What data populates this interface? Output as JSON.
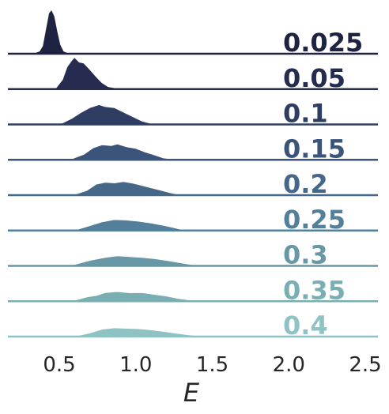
{
  "chart_data": {
    "type": "area",
    "style": "ridgeline density plot",
    "xlabel": "E",
    "x_ticks": [
      "0.5",
      "1.0",
      "1.5",
      "2.0",
      "2.5"
    ],
    "xlim": [
      0.15,
      2.6
    ],
    "grid": false,
    "legend": "none",
    "series": [
      {
        "name": "0.025",
        "color": "#1d2340",
        "peak": 1.0,
        "points": [
          [
            0.28,
            0
          ],
          [
            0.33,
            0.01
          ],
          [
            0.37,
            0.06
          ],
          [
            0.39,
            0.18
          ],
          [
            0.41,
            0.55
          ],
          [
            0.43,
            0.92
          ],
          [
            0.45,
            1.0
          ],
          [
            0.47,
            0.85
          ],
          [
            0.49,
            0.5
          ],
          [
            0.51,
            0.2
          ],
          [
            0.53,
            0.06
          ],
          [
            0.56,
            0.02
          ],
          [
            0.65,
            0
          ]
        ]
      },
      {
        "name": "0.05",
        "color": "#252c4f",
        "peak": 0.72,
        "points": [
          [
            0.44,
            0
          ],
          [
            0.48,
            0.05
          ],
          [
            0.52,
            0.3
          ],
          [
            0.55,
            0.7
          ],
          [
            0.58,
            0.9
          ],
          [
            0.6,
            1.0
          ],
          [
            0.63,
            0.85
          ],
          [
            0.66,
            0.82
          ],
          [
            0.7,
            0.62
          ],
          [
            0.74,
            0.4
          ],
          [
            0.78,
            0.2
          ],
          [
            0.82,
            0.08
          ],
          [
            0.88,
            0.03
          ],
          [
            0.95,
            0
          ]
        ]
      },
      {
        "name": "0.1",
        "color": "#2f3d62",
        "peak": 0.45,
        "points": [
          [
            0.46,
            0
          ],
          [
            0.52,
            0.08
          ],
          [
            0.58,
            0.3
          ],
          [
            0.64,
            0.6
          ],
          [
            0.7,
            0.85
          ],
          [
            0.76,
            1.0
          ],
          [
            0.8,
            0.9
          ],
          [
            0.86,
            0.85
          ],
          [
            0.92,
            0.62
          ],
          [
            0.98,
            0.4
          ],
          [
            1.04,
            0.18
          ],
          [
            1.1,
            0.05
          ],
          [
            1.22,
            0
          ]
        ]
      },
      {
        "name": "0.15",
        "color": "#3b5479",
        "peak": 0.36,
        "points": [
          [
            0.5,
            0
          ],
          [
            0.58,
            0.06
          ],
          [
            0.66,
            0.35
          ],
          [
            0.72,
            0.75
          ],
          [
            0.78,
            0.95
          ],
          [
            0.84,
            0.9
          ],
          [
            0.88,
            1.0
          ],
          [
            0.94,
            0.82
          ],
          [
            1.0,
            0.72
          ],
          [
            1.06,
            0.5
          ],
          [
            1.12,
            0.32
          ],
          [
            1.18,
            0.12
          ],
          [
            1.25,
            0.04
          ],
          [
            1.35,
            0
          ]
        ]
      },
      {
        "name": "0.2",
        "color": "#45688a",
        "peak": 0.31,
        "points": [
          [
            0.52,
            0
          ],
          [
            0.6,
            0.06
          ],
          [
            0.68,
            0.35
          ],
          [
            0.74,
            0.8
          ],
          [
            0.8,
            0.95
          ],
          [
            0.86,
            0.9
          ],
          [
            0.92,
            1.0
          ],
          [
            0.98,
            0.88
          ],
          [
            1.04,
            0.72
          ],
          [
            1.1,
            0.55
          ],
          [
            1.16,
            0.38
          ],
          [
            1.22,
            0.2
          ],
          [
            1.28,
            0.06
          ],
          [
            1.4,
            0
          ]
        ]
      },
      {
        "name": "0.25",
        "color": "#52809a",
        "peak": 0.25,
        "points": [
          [
            0.52,
            0
          ],
          [
            0.62,
            0.12
          ],
          [
            0.7,
            0.45
          ],
          [
            0.78,
            0.8
          ],
          [
            0.86,
            1.0
          ],
          [
            0.94,
            0.95
          ],
          [
            1.02,
            0.85
          ],
          [
            1.1,
            0.68
          ],
          [
            1.18,
            0.48
          ],
          [
            1.24,
            0.3
          ],
          [
            1.3,
            0.1
          ],
          [
            1.36,
            0.03
          ],
          [
            1.48,
            0
          ]
        ]
      },
      {
        "name": "0.3",
        "color": "#6898a6",
        "peak": 0.23,
        "points": [
          [
            0.5,
            0
          ],
          [
            0.6,
            0.15
          ],
          [
            0.7,
            0.55
          ],
          [
            0.8,
            0.85
          ],
          [
            0.88,
            1.0
          ],
          [
            0.96,
            0.92
          ],
          [
            1.04,
            0.85
          ],
          [
            1.12,
            0.72
          ],
          [
            1.2,
            0.55
          ],
          [
            1.28,
            0.35
          ],
          [
            1.36,
            0.15
          ],
          [
            1.45,
            0.04
          ],
          [
            1.58,
            0
          ]
        ]
      },
      {
        "name": "0.35",
        "color": "#79aeb2",
        "peak": 0.22,
        "points": [
          [
            0.52,
            0
          ],
          [
            0.6,
            0.1
          ],
          [
            0.68,
            0.45
          ],
          [
            0.74,
            0.6
          ],
          [
            0.8,
            0.9
          ],
          [
            0.88,
            1.0
          ],
          [
            0.96,
            0.88
          ],
          [
            1.04,
            0.9
          ],
          [
            1.12,
            0.72
          ],
          [
            1.2,
            0.55
          ],
          [
            1.28,
            0.3
          ],
          [
            1.36,
            0.12
          ],
          [
            1.45,
            0.04
          ],
          [
            1.6,
            0
          ]
        ]
      },
      {
        "name": "0.4",
        "color": "#8fc2c2",
        "peak": 0.2,
        "points": [
          [
            0.52,
            0
          ],
          [
            0.62,
            0.12
          ],
          [
            0.7,
            0.42
          ],
          [
            0.78,
            0.85
          ],
          [
            0.86,
            1.0
          ],
          [
            0.94,
            0.95
          ],
          [
            1.02,
            0.9
          ],
          [
            1.1,
            0.78
          ],
          [
            1.18,
            0.6
          ],
          [
            1.26,
            0.4
          ],
          [
            1.34,
            0.22
          ],
          [
            1.42,
            0.1
          ],
          [
            1.5,
            0.04
          ],
          [
            1.65,
            0
          ]
        ]
      }
    ]
  }
}
